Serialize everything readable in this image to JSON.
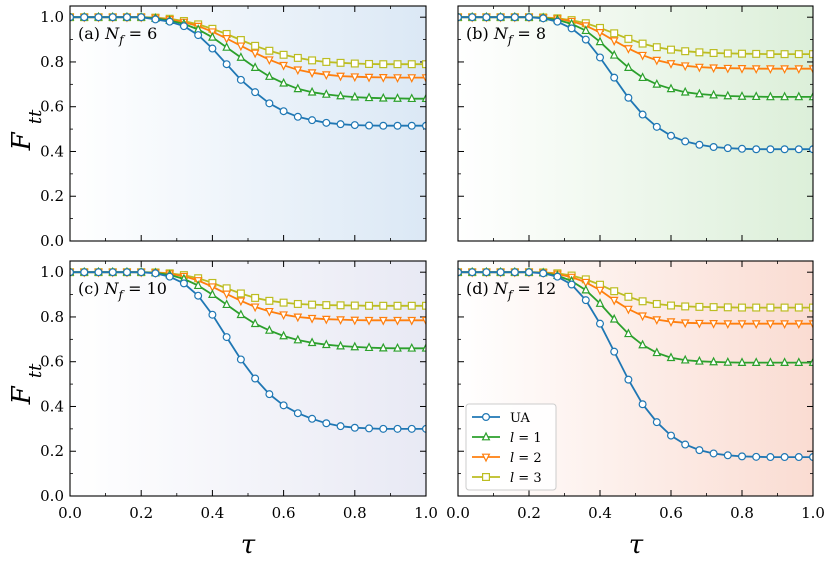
{
  "chart_data": {
    "type": "line",
    "xlabel": "τ",
    "ylabel": "F_tt",
    "xlim": [
      0.0,
      1.0
    ],
    "ylim": [
      0.0,
      1.05
    ],
    "x_ticks": [
      "0.0",
      "0.2",
      "0.4",
      "0.6",
      "0.8",
      "1.0"
    ],
    "y_ticks": [
      "0.0",
      "0.2",
      "0.4",
      "0.6",
      "0.8",
      "1.0"
    ],
    "x": [
      0.0,
      0.04,
      0.08,
      0.12,
      0.16,
      0.2,
      0.24,
      0.28,
      0.32,
      0.36,
      0.4,
      0.44,
      0.48,
      0.52,
      0.56,
      0.6,
      0.64,
      0.68,
      0.72,
      0.76,
      0.8,
      0.84,
      0.88,
      0.92,
      0.96,
      1.0
    ],
    "legend": {
      "placement": "lower-left of panel d",
      "entries": [
        {
          "name": "UA",
          "marker": "circle",
          "color": "#1f77b4"
        },
        {
          "name": "l = 1",
          "marker": "triangle-up",
          "color": "#2ca02c"
        },
        {
          "name": "l = 2",
          "marker": "triangle-down",
          "color": "#ff7f0e"
        },
        {
          "name": "l = 3",
          "marker": "square",
          "color": "#bcbd22"
        }
      ]
    },
    "panels": [
      {
        "label_prefix": "(a)",
        "label_var": "N",
        "label_sub": "f",
        "label_value": "= 6",
        "background_color": "#dbe8f5",
        "series": [
          {
            "name": "UA",
            "values": [
              1.0,
              1.0,
              1.0,
              1.0,
              1.0,
              1.0,
              0.99,
              0.98,
              0.96,
              0.92,
              0.86,
              0.79,
              0.72,
              0.665,
              0.615,
              0.58,
              0.555,
              0.54,
              0.528,
              0.522,
              0.518,
              0.516,
              0.515,
              0.515,
              0.515,
              0.515
            ]
          },
          {
            "name": "l = 1",
            "values": [
              1.0,
              1.0,
              1.0,
              1.0,
              1.0,
              1.0,
              0.995,
              0.985,
              0.97,
              0.945,
              0.91,
              0.865,
              0.82,
              0.775,
              0.735,
              0.705,
              0.68,
              0.665,
              0.655,
              0.648,
              0.643,
              0.64,
              0.638,
              0.637,
              0.636,
              0.636
            ]
          },
          {
            "name": "l = 2",
            "values": [
              1.0,
              1.0,
              1.0,
              1.0,
              1.0,
              1.0,
              0.997,
              0.99,
              0.978,
              0.96,
              0.935,
              0.905,
              0.872,
              0.84,
              0.81,
              0.785,
              0.765,
              0.752,
              0.743,
              0.737,
              0.734,
              0.732,
              0.731,
              0.73,
              0.73,
              0.73
            ]
          },
          {
            "name": "l = 3",
            "values": [
              1.0,
              1.0,
              1.0,
              1.0,
              1.0,
              1.0,
              0.998,
              0.993,
              0.983,
              0.968,
              0.948,
              0.925,
              0.898,
              0.872,
              0.85,
              0.832,
              0.818,
              0.807,
              0.8,
              0.796,
              0.793,
              0.791,
              0.79,
              0.79,
              0.79,
              0.79
            ]
          }
        ]
      },
      {
        "label_prefix": "(b)",
        "label_var": "N",
        "label_sub": "f",
        "label_value": "= 8",
        "background_color": "#dcefd9",
        "series": [
          {
            "name": "UA",
            "values": [
              1.0,
              1.0,
              1.0,
              1.0,
              1.0,
              1.0,
              0.995,
              0.98,
              0.95,
              0.9,
              0.82,
              0.73,
              0.64,
              0.565,
              0.51,
              0.47,
              0.445,
              0.43,
              0.42,
              0.415,
              0.412,
              0.41,
              0.41,
              0.41,
              0.41,
              0.41
            ]
          },
          {
            "name": "l = 1",
            "values": [
              1.0,
              1.0,
              1.0,
              1.0,
              1.0,
              1.0,
              0.997,
              0.988,
              0.97,
              0.94,
              0.89,
              0.83,
              0.775,
              0.73,
              0.7,
              0.68,
              0.665,
              0.657,
              0.652,
              0.648,
              0.646,
              0.645,
              0.644,
              0.644,
              0.644,
              0.644
            ]
          },
          {
            "name": "l = 2",
            "values": [
              1.0,
              1.0,
              1.0,
              1.0,
              1.0,
              1.0,
              0.998,
              0.993,
              0.982,
              0.962,
              0.932,
              0.895,
              0.86,
              0.83,
              0.808,
              0.793,
              0.783,
              0.777,
              0.774,
              0.772,
              0.771,
              0.77,
              0.77,
              0.77,
              0.77,
              0.77
            ]
          },
          {
            "name": "l = 3",
            "values": [
              1.0,
              1.0,
              1.0,
              1.0,
              1.0,
              1.0,
              0.999,
              0.995,
              0.987,
              0.973,
              0.952,
              0.928,
              0.903,
              0.882,
              0.866,
              0.855,
              0.848,
              0.843,
              0.84,
              0.838,
              0.837,
              0.836,
              0.835,
              0.835,
              0.835,
              0.835
            ]
          }
        ]
      },
      {
        "label_prefix": "(c)",
        "label_var": "N",
        "label_sub": "f",
        "label_value": "= 10",
        "background_color": "#e8e9f4",
        "series": [
          {
            "name": "UA",
            "values": [
              1.0,
              1.0,
              1.0,
              1.0,
              1.0,
              1.0,
              0.995,
              0.98,
              0.95,
              0.895,
              0.81,
              0.71,
              0.61,
              0.525,
              0.455,
              0.405,
              0.37,
              0.345,
              0.325,
              0.312,
              0.305,
              0.302,
              0.3,
              0.3,
              0.3,
              0.3
            ]
          },
          {
            "name": "l = 1",
            "values": [
              1.0,
              1.0,
              1.0,
              1.0,
              1.0,
              1.0,
              0.997,
              0.988,
              0.97,
              0.94,
              0.9,
              0.855,
              0.81,
              0.77,
              0.74,
              0.715,
              0.697,
              0.685,
              0.676,
              0.67,
              0.666,
              0.663,
              0.661,
              0.66,
              0.66,
              0.66
            ]
          },
          {
            "name": "l = 2",
            "values": [
              1.0,
              1.0,
              1.0,
              1.0,
              1.0,
              1.0,
              0.998,
              0.993,
              0.982,
              0.963,
              0.935,
              0.903,
              0.872,
              0.845,
              0.825,
              0.81,
              0.8,
              0.794,
              0.79,
              0.788,
              0.786,
              0.785,
              0.785,
              0.785,
              0.785,
              0.785
            ]
          },
          {
            "name": "l = 3",
            "values": [
              1.0,
              1.0,
              1.0,
              1.0,
              1.0,
              1.0,
              0.999,
              0.995,
              0.987,
              0.973,
              0.952,
              0.928,
              0.905,
              0.885,
              0.872,
              0.864,
              0.858,
              0.855,
              0.853,
              0.852,
              0.851,
              0.85,
              0.85,
              0.85,
              0.85,
              0.85
            ]
          }
        ]
      },
      {
        "label_prefix": "(d)",
        "label_var": "N",
        "label_sub": "f",
        "label_value": "= 12",
        "background_color": "#fadcd2",
        "series": [
          {
            "name": "UA",
            "values": [
              1.0,
              1.0,
              1.0,
              1.0,
              1.0,
              1.0,
              0.995,
              0.98,
              0.945,
              0.875,
              0.77,
              0.645,
              0.52,
              0.41,
              0.33,
              0.27,
              0.23,
              0.205,
              0.19,
              0.182,
              0.177,
              0.175,
              0.174,
              0.174,
              0.174,
              0.174
            ]
          },
          {
            "name": "l = 1",
            "values": [
              1.0,
              1.0,
              1.0,
              1.0,
              1.0,
              1.0,
              0.997,
              0.985,
              0.96,
              0.92,
              0.86,
              0.79,
              0.725,
              0.675,
              0.64,
              0.618,
              0.607,
              0.602,
              0.599,
              0.597,
              0.596,
              0.596,
              0.596,
              0.596,
              0.596,
              0.596
            ]
          },
          {
            "name": "l = 2",
            "values": [
              1.0,
              1.0,
              1.0,
              1.0,
              1.0,
              1.0,
              0.998,
              0.992,
              0.978,
              0.955,
              0.92,
              0.875,
              0.835,
              0.805,
              0.788,
              0.779,
              0.774,
              0.772,
              0.771,
              0.77,
              0.77,
              0.77,
              0.77,
              0.77,
              0.77,
              0.77
            ]
          },
          {
            "name": "l = 3",
            "values": [
              1.0,
              1.0,
              1.0,
              1.0,
              1.0,
              1.0,
              0.999,
              0.995,
              0.985,
              0.968,
              0.944,
              0.915,
              0.89,
              0.87,
              0.858,
              0.851,
              0.847,
              0.845,
              0.844,
              0.843,
              0.842,
              0.842,
              0.842,
              0.842,
              0.842,
              0.842
            ]
          }
        ]
      }
    ]
  }
}
